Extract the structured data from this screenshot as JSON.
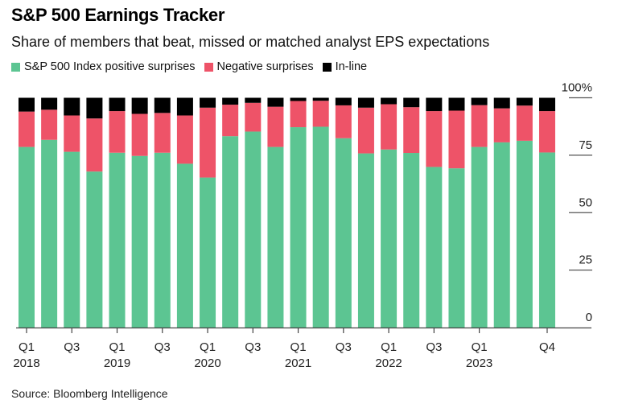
{
  "header": {
    "title": "S&P 500 Earnings Tracker",
    "subtitle": "Share of members that beat, missed or matched analyst EPS expectations"
  },
  "legend": [
    {
      "label": "S&P 500 Index positive surprises",
      "color": "#5cc592"
    },
    {
      "label": "Negative surprises",
      "color": "#ee5368"
    },
    {
      "label": "In-line",
      "color": "#000000"
    }
  ],
  "footer": {
    "source": "Source: Bloomberg Intelligence"
  },
  "chart_data": {
    "type": "bar",
    "stacked": true,
    "title": "S&P 500 Earnings Tracker",
    "subtitle": "Share of members that beat, missed or matched analyst EPS expectations",
    "xlabel": "",
    "ylabel": "",
    "ylim": [
      0,
      100
    ],
    "y_ticks": [
      0,
      25,
      50,
      75,
      100
    ],
    "y_tick_labels": [
      "0",
      "25",
      "50",
      "75",
      "100%"
    ],
    "y_axis_side": "right",
    "legend_position": "top-left",
    "grid": false,
    "categories": [
      "Q1 2018",
      "Q2 2018",
      "Q3 2018",
      "Q4 2018",
      "Q1 2019",
      "Q2 2019",
      "Q3 2019",
      "Q4 2019",
      "Q1 2020",
      "Q2 2020",
      "Q3 2020",
      "Q4 2020",
      "Q1 2021",
      "Q2 2021",
      "Q3 2021",
      "Q4 2021",
      "Q1 2022",
      "Q2 2022",
      "Q3 2022",
      "Q4 2022",
      "Q1 2023",
      "Q2 2023",
      "Q3 2023",
      "Q4 2023"
    ],
    "x_tick_labels": [
      {
        "index": 0,
        "line1": "Q1",
        "line2": "2018"
      },
      {
        "index": 2,
        "line1": "Q3",
        "line2": ""
      },
      {
        "index": 4,
        "line1": "Q1",
        "line2": "2019"
      },
      {
        "index": 6,
        "line1": "Q3",
        "line2": ""
      },
      {
        "index": 8,
        "line1": "Q1",
        "line2": "2020"
      },
      {
        "index": 10,
        "line1": "Q3",
        "line2": ""
      },
      {
        "index": 12,
        "line1": "Q1",
        "line2": "2021"
      },
      {
        "index": 14,
        "line1": "Q3",
        "line2": ""
      },
      {
        "index": 16,
        "line1": "Q1",
        "line2": "2022"
      },
      {
        "index": 18,
        "line1": "Q3",
        "line2": ""
      },
      {
        "index": 20,
        "line1": "Q1",
        "line2": "2023"
      },
      {
        "index": 23,
        "line1": "Q4",
        "line2": ""
      }
    ],
    "series": [
      {
        "name": "S&P 500 Index positive surprises",
        "color": "#5cc592",
        "values": [
          78.6,
          81.7,
          76.5,
          67.9,
          76.1,
          74.7,
          76.1,
          71.3,
          65.3,
          83.3,
          85.3,
          78.6,
          87.2,
          87.4,
          82.4,
          75.8,
          77.5,
          76.0,
          69.9,
          69.3,
          78.6,
          80.6,
          81.3,
          76.2
        ]
      },
      {
        "name": "Negative surprises",
        "color": "#ee5368",
        "values": [
          15.4,
          13.1,
          15.8,
          23.1,
          18.1,
          18.3,
          17.3,
          21.0,
          30.4,
          13.7,
          12.5,
          17.5,
          11.4,
          11.3,
          14.3,
          19.9,
          19.7,
          19.9,
          24.3,
          25.1,
          18.2,
          14.8,
          15.3,
          18.0
        ]
      },
      {
        "name": "In-line",
        "color": "#000000",
        "values": [
          6.0,
          5.2,
          7.7,
          9.0,
          5.8,
          7.0,
          6.6,
          7.7,
          4.3,
          3.0,
          2.2,
          3.9,
          1.4,
          1.3,
          3.3,
          4.3,
          2.8,
          4.1,
          5.8,
          5.6,
          3.2,
          4.6,
          3.4,
          5.8
        ]
      }
    ]
  }
}
